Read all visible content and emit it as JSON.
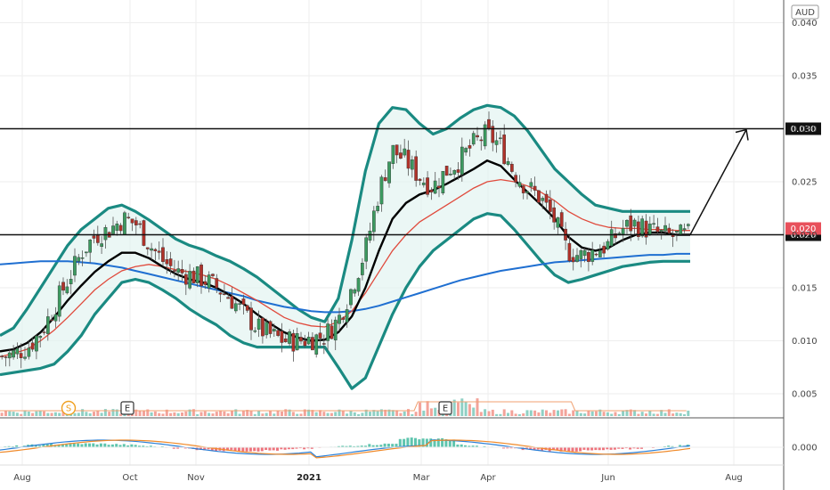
{
  "currency": "AUD",
  "chart_data": {
    "type": "candlestick",
    "currency": "AUD",
    "y_ticks": [
      "0.040",
      "0.035",
      "0.030",
      "0.025",
      "0.020",
      "0.015",
      "0.010",
      "0.005"
    ],
    "macd_tick": "0.000",
    "x_ticks": [
      "Aug",
      "Oct",
      "Nov",
      "2021",
      "Mar",
      "Apr",
      "Jun",
      "Aug"
    ],
    "ylim": [
      0.0,
      0.041
    ],
    "horizontal_lines": [
      {
        "value": 0.03,
        "label": "0.030"
      },
      {
        "value": 0.02,
        "label": "0.020"
      }
    ],
    "current_price": {
      "value": 0.02,
      "label": "0.020"
    },
    "markers": [
      {
        "type": "dividend",
        "text": "S",
        "color": "#f0a020"
      },
      {
        "type": "earnings",
        "text": "E",
        "color": "#333333"
      },
      {
        "type": "earnings",
        "text": "E",
        "color": "#333333"
      }
    ],
    "arrow": {
      "from": 0.02,
      "to": 0.03
    },
    "series": [
      {
        "role": "price",
        "approx_close": [
          0.0085,
          0.0088,
          0.0095,
          0.011,
          0.0135,
          0.016,
          0.0185,
          0.02,
          0.0205,
          0.0215,
          0.021,
          0.019,
          0.0175,
          0.0165,
          0.0162,
          0.0158,
          0.015,
          0.014,
          0.0125,
          0.0112,
          0.0105,
          0.01,
          0.01,
          0.0102,
          0.0105,
          0.012,
          0.015,
          0.0185,
          0.024,
          0.028,
          0.027,
          0.0255,
          0.0245,
          0.026,
          0.027,
          0.0285,
          0.0295,
          0.0285,
          0.026,
          0.0245,
          0.0235,
          0.0215,
          0.0185,
          0.018,
          0.0185,
          0.019,
          0.0205,
          0.021,
          0.0205,
          0.02,
          0.0198,
          0.02
        ]
      },
      {
        "role": "sma_20",
        "color": "#000000",
        "values": [
          0.009,
          0.0092,
          0.0098,
          0.0108,
          0.0122,
          0.0138,
          0.0152,
          0.0165,
          0.0175,
          0.0183,
          0.0183,
          0.0178,
          0.017,
          0.0163,
          0.0158,
          0.0155,
          0.015,
          0.0143,
          0.0135,
          0.0125,
          0.0116,
          0.0108,
          0.0103,
          0.01,
          0.0101,
          0.0108,
          0.0123,
          0.015,
          0.0185,
          0.0215,
          0.023,
          0.0238,
          0.0242,
          0.0248,
          0.0255,
          0.0262,
          0.027,
          0.0265,
          0.0252,
          0.024,
          0.0228,
          0.0215,
          0.0198,
          0.0188,
          0.0185,
          0.0188,
          0.0195,
          0.02,
          0.0202,
          0.0202,
          0.02,
          0.02
        ]
      },
      {
        "role": "ema_50",
        "color": "#e04a3c",
        "values": [
          0.0085,
          0.0088,
          0.0092,
          0.01,
          0.011,
          0.0122,
          0.0135,
          0.0148,
          0.0158,
          0.0166,
          0.017,
          0.0172,
          0.017,
          0.0167,
          0.0165,
          0.0162,
          0.0158,
          0.0152,
          0.0145,
          0.0138,
          0.013,
          0.0122,
          0.0117,
          0.0114,
          0.0113,
          0.0118,
          0.0128,
          0.0145,
          0.0165,
          0.0185,
          0.02,
          0.0212,
          0.022,
          0.0228,
          0.0236,
          0.0244,
          0.025,
          0.0252,
          0.025,
          0.0246,
          0.024,
          0.0232,
          0.0222,
          0.0215,
          0.021,
          0.0207,
          0.0206,
          0.0206,
          0.0205,
          0.0205,
          0.0204,
          0.0204
        ]
      },
      {
        "role": "sma_200",
        "color": "#1f6fd1",
        "values": [
          0.0172,
          0.0173,
          0.0174,
          0.0175,
          0.0175,
          0.0175,
          0.0174,
          0.0173,
          0.0171,
          0.0169,
          0.0166,
          0.0163,
          0.016,
          0.0157,
          0.0154,
          0.0151,
          0.0148,
          0.0145,
          0.0142,
          0.0138,
          0.0135,
          0.0132,
          0.013,
          0.0128,
          0.0127,
          0.0127,
          0.0128,
          0.013,
          0.0133,
          0.0137,
          0.0141,
          0.0145,
          0.0149,
          0.0153,
          0.0157,
          0.016,
          0.0163,
          0.0166,
          0.0168,
          0.017,
          0.0172,
          0.0174,
          0.0175,
          0.0176,
          0.0177,
          0.0178,
          0.0179,
          0.018,
          0.0181,
          0.0181,
          0.0182,
          0.0182
        ]
      },
      {
        "role": "bollinger_upper",
        "color": "#1a8a82",
        "values": [
          0.0105,
          0.0112,
          0.013,
          0.015,
          0.017,
          0.019,
          0.0205,
          0.0215,
          0.0225,
          0.0228,
          0.0222,
          0.0214,
          0.0205,
          0.0196,
          0.019,
          0.0186,
          0.018,
          0.0175,
          0.0168,
          0.016,
          0.015,
          0.014,
          0.013,
          0.0122,
          0.0118,
          0.014,
          0.0195,
          0.026,
          0.0305,
          0.032,
          0.0318,
          0.0305,
          0.0295,
          0.03,
          0.031,
          0.0318,
          0.0322,
          0.032,
          0.0312,
          0.0298,
          0.028,
          0.0262,
          0.025,
          0.0238,
          0.0228,
          0.0225,
          0.0222,
          0.0222,
          0.0222,
          0.0222,
          0.0222,
          0.0222
        ]
      },
      {
        "role": "bollinger_lower",
        "color": "#1a8a82",
        "values": [
          0.0068,
          0.007,
          0.0072,
          0.0074,
          0.0078,
          0.009,
          0.0105,
          0.0125,
          0.014,
          0.0155,
          0.0158,
          0.0155,
          0.0148,
          0.014,
          0.013,
          0.0122,
          0.0115,
          0.0105,
          0.0098,
          0.0094,
          0.0094,
          0.0094,
          0.0094,
          0.0094,
          0.0094,
          0.0075,
          0.0055,
          0.0065,
          0.0095,
          0.0125,
          0.015,
          0.017,
          0.0185,
          0.0195,
          0.0205,
          0.0215,
          0.022,
          0.0218,
          0.0205,
          0.019,
          0.0175,
          0.0162,
          0.0155,
          0.0158,
          0.0162,
          0.0166,
          0.017,
          0.0172,
          0.0174,
          0.0175,
          0.0175,
          0.0175
        ]
      }
    ]
  }
}
